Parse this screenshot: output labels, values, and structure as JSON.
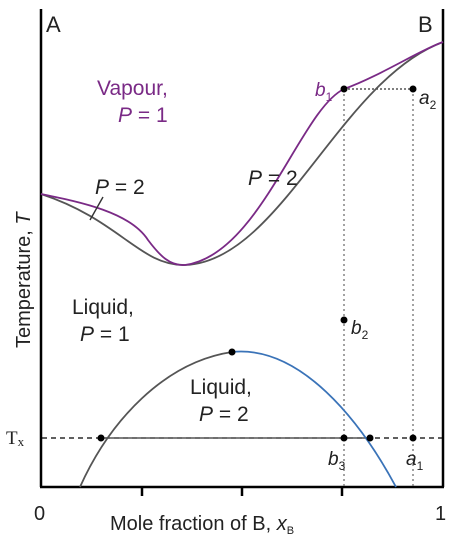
{
  "corner_labels": {
    "left": "A",
    "right": "B"
  },
  "axes": {
    "y_label_main": "Temperature, ",
    "y_label_var": "T",
    "x_label_main": "Mole fraction of B, ",
    "x_label_var": "x",
    "x_label_sub": "B",
    "x_min": "0",
    "x_max": "1"
  },
  "regions": {
    "vapour": {
      "line1": "Vapour,",
      "var": "P",
      "eq": " = 1"
    },
    "two_phase_left": {
      "var": "P",
      "eq": " = 2"
    },
    "two_phase_right": {
      "var": "P",
      "eq": " = 2"
    },
    "liquid_single": {
      "line1": "Liquid,",
      "var": "P",
      "eq": " = 1"
    },
    "liquid_two": {
      "line1": "Liquid,",
      "var": "P",
      "eq": " = 2"
    }
  },
  "points": {
    "b1": {
      "base": "b",
      "sub": "1"
    },
    "a2": {
      "base": "a",
      "sub": "2"
    },
    "b2": {
      "base": "b",
      "sub": "2"
    },
    "b3": {
      "base": "b",
      "sub": "3"
    },
    "a1": {
      "base": "a",
      "sub": "1"
    }
  },
  "tx_label": {
    "base": "T",
    "sub": "x"
  },
  "colors": {
    "vapour_curve": "#7a2a86",
    "liquid_curve": "#555555",
    "solubility_right": "#3a73b8",
    "axis": "#000000",
    "text": "#222222",
    "vapour_text": "#7a2a86"
  }
}
